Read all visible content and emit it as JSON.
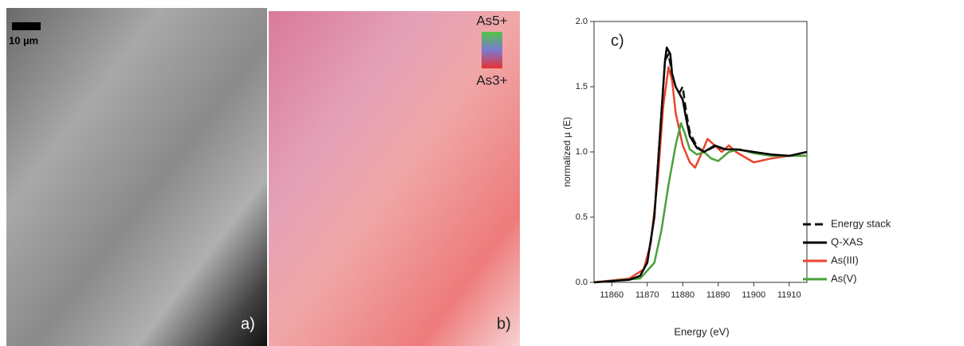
{
  "panels": {
    "a": {
      "scale_bar": "10 µm",
      "label": "a)"
    },
    "b": {
      "label": "b)",
      "scale_top": "As5+",
      "scale_bottom": "As3+"
    }
  },
  "chart_data": {
    "type": "line",
    "title": "c)",
    "x_label": "Energy (eV)",
    "y_label": "normalized µ (E)",
    "xlim": [
      11855,
      11915
    ],
    "xticks": [
      11860,
      11870,
      11880,
      11890,
      11900,
      11910
    ],
    "ylim": [
      0,
      2
    ],
    "yticks": [
      {
        "value": 0,
        "label": "0.0"
      },
      0.5,
      {
        "value": 1,
        "label": "1.0"
      },
      1.5,
      {
        "value": 2,
        "label": "2.0"
      }
    ],
    "legend": "lower right",
    "series": [
      {
        "name": "Energy stack",
        "color": "#111111",
        "dashed": true,
        "x": [
          11870,
          11872,
          11874,
          11875,
          11876,
          11877,
          11878,
          11879,
          11880,
          11881,
          11882,
          11884,
          11886,
          11889,
          11892,
          11895,
          11900
        ],
        "values": [
          0.15,
          0.5,
          1.3,
          1.7,
          1.75,
          1.6,
          1.5,
          1.45,
          1.5,
          1.3,
          1.15,
          1.04,
          1.0,
          1.04,
          1.02,
          1.02,
          1.0
        ]
      },
      {
        "name": "Q-XAS",
        "color": "#000000",
        "dashed": false,
        "x": [
          11855,
          11865,
          11868,
          11870,
          11872,
          11874,
          11875,
          11875.5,
          11876.5,
          11877,
          11878,
          11879,
          11880,
          11881,
          11882,
          11884,
          11886,
          11889,
          11892,
          11895,
          11900,
          11905,
          11910,
          11915
        ],
        "values": [
          0.0,
          0.02,
          0.05,
          0.15,
          0.5,
          1.3,
          1.7,
          1.8,
          1.75,
          1.6,
          1.5,
          1.45,
          1.4,
          1.25,
          1.12,
          1.03,
          1.0,
          1.05,
          1.02,
          1.02,
          1.0,
          0.98,
          0.97,
          1.0
        ]
      },
      {
        "name": "As(III)",
        "color": "#e8452c",
        "dashed": false,
        "x": [
          11855,
          11865,
          11869,
          11871,
          11873,
          11874.5,
          11876,
          11877,
          11878,
          11880,
          11882,
          11883.5,
          11885,
          11887,
          11889,
          11891,
          11893,
          11895,
          11900,
          11905,
          11910,
          11915
        ],
        "values": [
          0.0,
          0.03,
          0.1,
          0.3,
          0.8,
          1.35,
          1.65,
          1.55,
          1.3,
          1.05,
          0.92,
          0.88,
          0.97,
          1.1,
          1.05,
          1.0,
          1.05,
          1.0,
          0.92,
          0.95,
          0.97,
          0.97
        ]
      },
      {
        "name": "As(V)",
        "color": "#4aa03a",
        "dashed": false,
        "x": [
          11855,
          11868,
          11872,
          11874,
          11876,
          11878,
          11879.5,
          11880.5,
          11882,
          11884,
          11886,
          11888,
          11890,
          11893,
          11896,
          11900,
          11905,
          11915
        ],
        "values": [
          0.0,
          0.03,
          0.15,
          0.4,
          0.75,
          1.05,
          1.22,
          1.15,
          1.02,
          0.98,
          1.0,
          0.95,
          0.93,
          1.0,
          1.02,
          0.99,
          0.97,
          0.97
        ]
      }
    ]
  }
}
